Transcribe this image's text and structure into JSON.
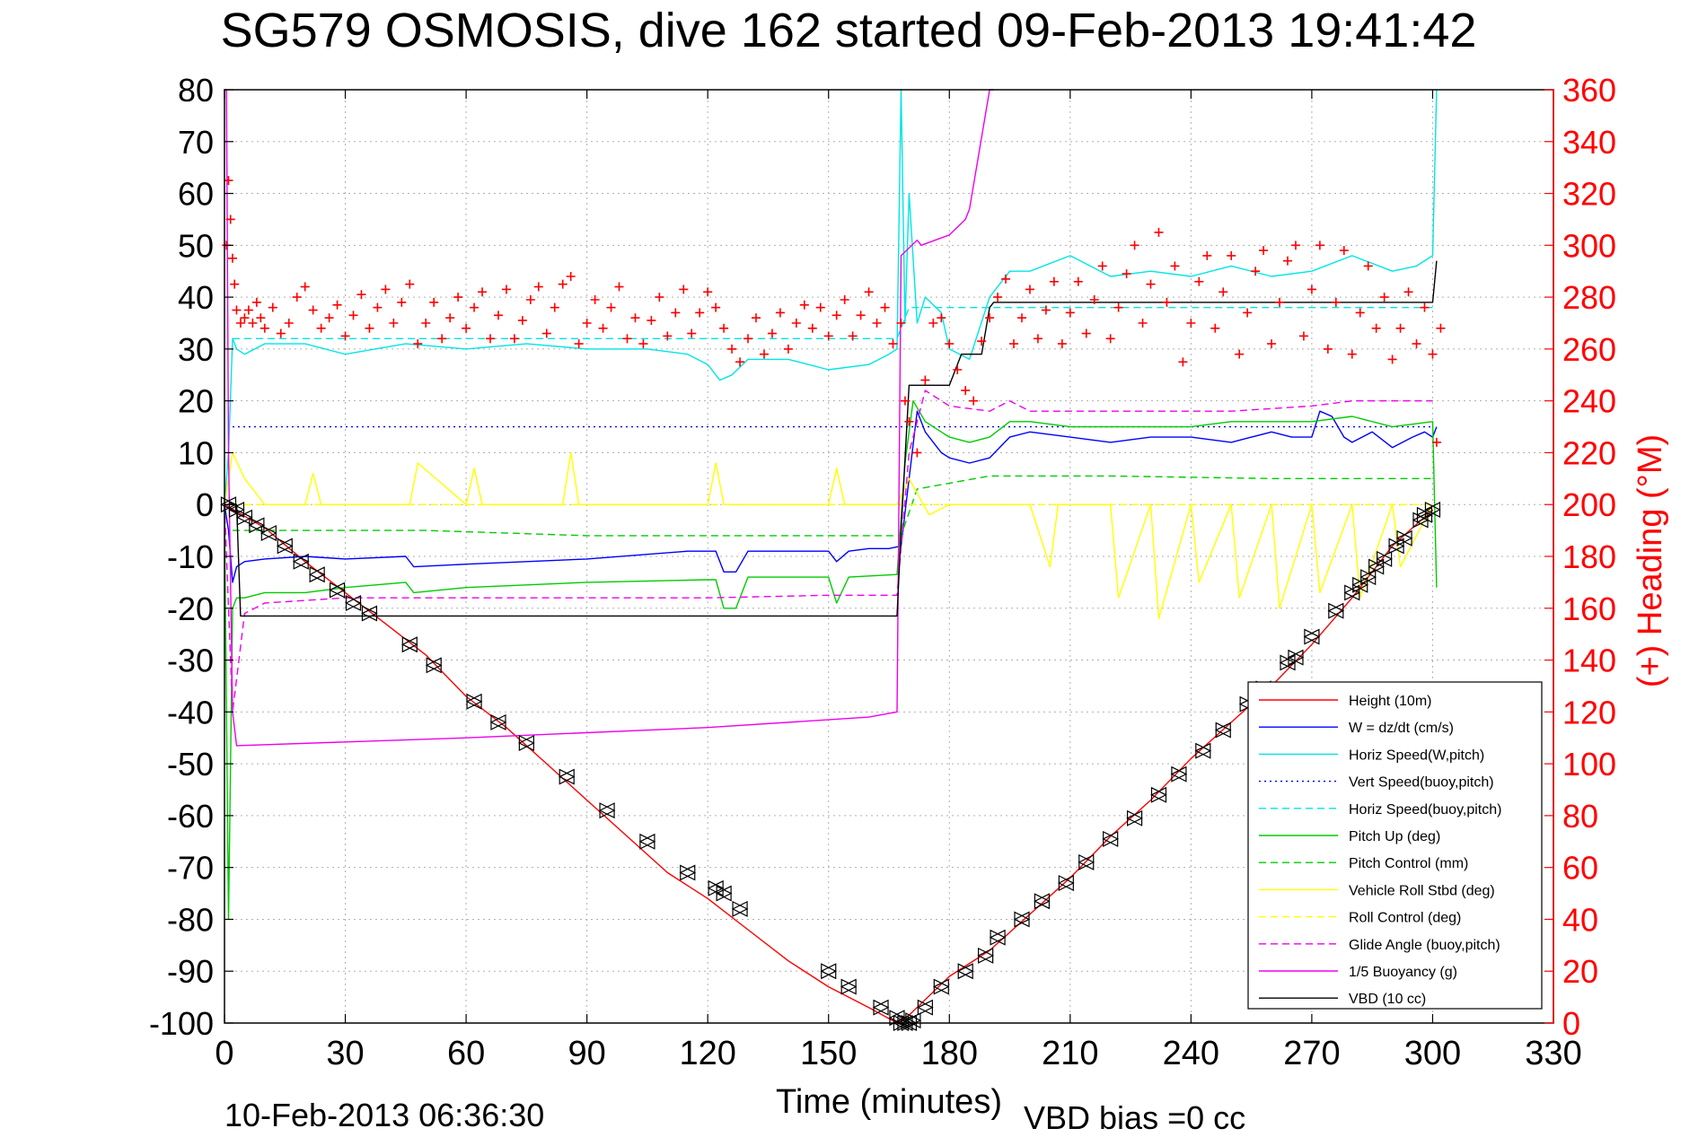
{
  "chart_data": {
    "type": "line",
    "title": "SG579 OSMOSIS, dive 162 started 09-Feb-2013 19:41:42",
    "xlabel": "Time (minutes)",
    "ylabel": "",
    "y2label": "(+) Heading (°M)",
    "xlim": [
      0,
      330
    ],
    "ylim": [
      -100,
      80
    ],
    "y2lim": [
      0,
      360
    ],
    "xticks": [
      0,
      30,
      60,
      90,
      120,
      150,
      180,
      210,
      240,
      270,
      300,
      330
    ],
    "yticks": [
      -100,
      -90,
      -80,
      -70,
      -60,
      -50,
      -40,
      -30,
      -20,
      -10,
      0,
      10,
      20,
      30,
      40,
      50,
      60,
      70,
      80
    ],
    "y2ticks": [
      0,
      20,
      40,
      60,
      80,
      100,
      120,
      140,
      160,
      180,
      200,
      220,
      240,
      260,
      280,
      300,
      320,
      340,
      360
    ],
    "grid": true,
    "legend_position": "lower-right",
    "footer_left": "10-Feb-2013 06:36:30",
    "footer_right": "VBD bias =0 cc",
    "series": [
      {
        "name": "Height (10m)",
        "color": "#ff0000",
        "dash": "solid",
        "x": [
          0,
          10,
          20,
          30,
          40,
          50,
          60,
          70,
          80,
          90,
          100,
          110,
          120,
          130,
          140,
          150,
          160,
          167,
          170,
          180,
          190,
          200,
          210,
          220,
          230,
          240,
          250,
          260,
          270,
          280,
          290,
          300
        ],
        "y": [
          0,
          -4.5,
          -11,
          -17,
          -23,
          -29,
          -37,
          -43,
          -50,
          -57,
          -64,
          -71,
          -76,
          -82,
          -88,
          -93,
          -97,
          -100,
          -98.5,
          -91,
          -86,
          -79,
          -72,
          -64,
          -57,
          -49,
          -42,
          -35,
          -27,
          -18,
          -8,
          -1
        ]
      },
      {
        "name": "W = dz/dt (cm/s)",
        "color": "#0000ff",
        "dash": "solid",
        "x": [
          0,
          1,
          2,
          3,
          5,
          10,
          20,
          30,
          45,
          47,
          60,
          90,
          115,
          122,
          124,
          127,
          130,
          150,
          152,
          155,
          160,
          165,
          168,
          170,
          172,
          174,
          178,
          180,
          185,
          190,
          195,
          200,
          210,
          220,
          230,
          240,
          250,
          255,
          260,
          265,
          270,
          272,
          275,
          278,
          280,
          285,
          290,
          295,
          298,
          300,
          301
        ],
        "y": [
          0,
          -5,
          -15,
          -12,
          -11,
          -10.5,
          -10,
          -10.5,
          -10,
          -12,
          -11.5,
          -10.5,
          -9,
          -9,
          -13,
          -13,
          -9,
          -9,
          -11,
          -9,
          -8.5,
          -8.5,
          -8,
          5,
          18,
          14,
          10,
          9,
          8,
          9,
          13,
          14,
          13,
          12,
          13,
          13,
          12,
          13,
          14,
          13,
          13,
          18,
          17,
          13,
          12,
          14,
          11,
          13,
          14,
          13,
          15
        ]
      },
      {
        "name": "Horiz Speed(W,pitch)",
        "color": "#00e5e5",
        "dash": "solid",
        "x": [
          0,
          1,
          2,
          3,
          5,
          10,
          20,
          30,
          45,
          60,
          75,
          90,
          105,
          115,
          120,
          123,
          126,
          130,
          140,
          150,
          160,
          165,
          167,
          168,
          169,
          170,
          172,
          174,
          178,
          180,
          185,
          190,
          195,
          200,
          210,
          220,
          230,
          240,
          250,
          260,
          270,
          280,
          290,
          296,
          300,
          301
        ],
        "y": [
          0,
          10,
          32,
          30,
          29,
          31,
          31,
          29,
          31,
          30,
          31,
          30,
          30,
          29,
          27,
          24,
          25,
          28,
          28,
          26,
          27,
          29,
          30,
          80,
          35,
          60,
          35,
          40,
          37,
          30,
          28,
          40,
          45,
          45,
          48,
          44,
          45,
          44,
          46,
          44,
          45,
          48,
          45,
          46,
          48,
          80
        ]
      },
      {
        "name": "Vert Speed(buoy,pitch)",
        "color": "#0000ff",
        "dash": "dotted",
        "x": [
          2,
          167,
          168,
          300
        ],
        "y": [
          15,
          15,
          15,
          15
        ]
      },
      {
        "name": "Horiz Speed(buoy,pitch)",
        "color": "#00e5e5",
        "dash": "dashed",
        "x": [
          2,
          167,
          170,
          300
        ],
        "y": [
          32,
          32,
          38,
          38
        ]
      },
      {
        "name": "Pitch Up (deg)",
        "color": "#00cc00",
        "dash": "solid",
        "x": [
          0,
          1,
          2,
          3,
          5,
          10,
          20,
          30,
          45,
          47,
          60,
          90,
          120,
          122,
          124,
          127,
          130,
          150,
          152,
          155,
          167,
          169,
          171,
          174,
          178,
          180,
          185,
          190,
          195,
          200,
          210,
          220,
          230,
          240,
          250,
          260,
          270,
          280,
          290,
          300,
          301
        ],
        "y": [
          0,
          -80,
          -20,
          -18,
          -18,
          -17,
          -17,
          -16,
          -15,
          -17,
          -16,
          -15,
          -14.5,
          -14.5,
          -20,
          -20,
          -14,
          -14,
          -19,
          -14,
          -13.5,
          8,
          20,
          16,
          14,
          13,
          12,
          13,
          16,
          16,
          15,
          15,
          15,
          15,
          16,
          16,
          16,
          17,
          15,
          16,
          -16
        ]
      },
      {
        "name": "Pitch Control (mm)",
        "color": "#00cc00",
        "dash": "dashed",
        "x": [
          2,
          20,
          50,
          90,
          130,
          168,
          172,
          190,
          220,
          260,
          300
        ],
        "y": [
          -5,
          -5,
          -5,
          -6,
          -6,
          -6,
          3,
          5.5,
          5.5,
          5,
          5
        ]
      },
      {
        "name": "Vehicle Roll Stbd (deg)",
        "color": "#ffff00",
        "dash": "solid",
        "x": [
          0,
          2,
          5,
          10,
          20,
          22,
          24,
          30,
          46,
          48,
          60,
          62,
          64,
          84,
          86,
          88,
          100,
          120,
          122,
          124,
          150,
          152,
          154,
          167,
          170,
          175,
          180,
          185,
          190,
          200,
          205,
          207,
          210,
          220,
          222,
          230,
          232,
          240,
          242,
          250,
          252,
          260,
          262,
          270,
          272,
          280,
          282,
          290,
          292,
          300
        ],
        "y": [
          0,
          10,
          5,
          0,
          0,
          6,
          0,
          0,
          0,
          8,
          0,
          7,
          0,
          0,
          10,
          0,
          0,
          0,
          8,
          0,
          0,
          7,
          0,
          0,
          5,
          -2,
          0,
          0,
          0,
          0,
          -12,
          0,
          0,
          0,
          -18,
          0,
          -22,
          0,
          -15,
          0,
          -18,
          0,
          -20,
          0,
          -17,
          0,
          -18,
          0,
          -12,
          0
        ]
      },
      {
        "name": "Roll Control (deg)",
        "color": "#ffff00",
        "dash": "dashed",
        "x": [
          2,
          167,
          170,
          300
        ],
        "y": [
          0,
          0,
          0,
          0
        ]
      },
      {
        "name": "Glide Angle (buoy,pitch)",
        "color": "#ee00ee",
        "dash": "dashed",
        "x": [
          0,
          2,
          5,
          10,
          20,
          30,
          60,
          90,
          120,
          150,
          167,
          170,
          174,
          180,
          190,
          195,
          200,
          220,
          250,
          270,
          280,
          300
        ],
        "y": [
          0,
          -40,
          -21,
          -19,
          -18.5,
          -18,
          -18,
          -18,
          -18,
          -17.5,
          -17.5,
          10,
          22,
          19,
          18,
          20,
          18,
          18,
          18,
          19,
          20,
          20
        ]
      },
      {
        "name": "1/5 Buoyancy (g)",
        "color": "#ee00ee",
        "dash": "solid",
        "x": [
          0,
          0.5,
          1,
          2,
          3,
          60,
          120,
          160,
          167,
          168,
          172,
          173,
          180,
          184,
          185,
          190,
          191
        ],
        "y": [
          80,
          80,
          10,
          -40,
          -46.5,
          -45,
          -43,
          -41,
          -40,
          48,
          51,
          50,
          52,
          55,
          57,
          80,
          80
        ]
      },
      {
        "name": "VBD (10 cc)",
        "color": "#000000",
        "dash": "solid",
        "x": [
          0,
          3,
          4,
          60,
          120,
          167,
          168,
          170,
          176,
          180,
          183,
          185,
          188,
          190,
          191,
          300,
          301
        ],
        "y": [
          0,
          0,
          -21.5,
          -21.5,
          -21.5,
          -21.5,
          -5,
          23,
          23,
          23,
          29,
          29,
          29,
          38,
          39,
          39,
          47
        ]
      }
    ],
    "heading_series": {
      "name": "(+) Heading",
      "color": "#ff0000",
      "marker": "+",
      "x": [
        0.5,
        1,
        1.5,
        2,
        2.5,
        3,
        4,
        5,
        6,
        7,
        8,
        9,
        10,
        12,
        14,
        16,
        18,
        20,
        22,
        24,
        26,
        28,
        30,
        32,
        34,
        36,
        38,
        40,
        42,
        44,
        46,
        48,
        50,
        52,
        54,
        56,
        58,
        60,
        62,
        64,
        66,
        68,
        70,
        72,
        74,
        76,
        78,
        80,
        82,
        84,
        86,
        88,
        90,
        92,
        94,
        96,
        98,
        100,
        102,
        104,
        106,
        108,
        110,
        112,
        114,
        116,
        118,
        120,
        122,
        124,
        126,
        128,
        130,
        132,
        134,
        136,
        138,
        140,
        142,
        144,
        146,
        148,
        150,
        152,
        154,
        156,
        158,
        160,
        162,
        164,
        166,
        168,
        169,
        170,
        172,
        174,
        176,
        178,
        180,
        182,
        184,
        186,
        188,
        190,
        192,
        194,
        196,
        198,
        200,
        202,
        204,
        206,
        208,
        210,
        212,
        214,
        216,
        218,
        220,
        222,
        224,
        226,
        228,
        230,
        232,
        234,
        236,
        238,
        240,
        242,
        244,
        246,
        248,
        250,
        252,
        254,
        256,
        258,
        260,
        262,
        264,
        266,
        268,
        270,
        272,
        274,
        276,
        278,
        280,
        282,
        284,
        286,
        288,
        290,
        292,
        294,
        296,
        298,
        300,
        301,
        302
      ],
      "y": [
        300,
        325,
        310,
        295,
        285,
        275,
        270,
        272,
        275,
        270,
        278,
        272,
        268,
        276,
        266,
        270,
        280,
        284,
        275,
        268,
        272,
        277,
        265,
        273,
        281,
        268,
        276,
        283,
        270,
        278,
        285,
        262,
        270,
        278,
        264,
        272,
        280,
        268,
        276,
        282,
        264,
        273,
        283,
        264,
        271,
        279,
        284,
        266,
        276,
        285,
        288,
        262,
        270,
        279,
        268,
        276,
        284,
        264,
        272,
        262,
        271,
        280,
        265,
        274,
        283,
        266,
        274,
        282,
        276,
        268,
        260,
        255,
        264,
        272,
        258,
        266,
        274,
        260,
        270,
        277,
        268,
        276,
        265,
        273,
        279,
        265,
        273,
        282,
        270,
        276,
        262,
        270,
        240,
        232,
        220,
        248,
        270,
        272,
        262,
        252,
        244,
        240,
        263,
        272,
        280,
        287,
        262,
        272,
        283,
        264,
        275,
        286,
        262,
        274,
        286,
        266,
        279,
        292,
        264,
        276,
        289,
        300,
        270,
        285,
        305,
        278,
        292,
        255,
        270,
        286,
        296,
        268,
        282,
        296,
        258,
        274,
        290,
        298,
        262,
        278,
        294,
        300,
        265,
        283,
        300,
        260,
        278,
        298,
        258,
        274,
        292,
        268,
        280,
        256,
        268,
        282,
        262,
        276,
        258,
        224,
        268
      ]
    },
    "track_markers": {
      "marker": "triangle",
      "color": "#000000",
      "x": [
        1,
        3,
        5,
        8,
        11,
        15,
        19,
        23,
        28,
        32,
        36,
        46,
        52,
        62,
        68,
        75,
        85,
        95,
        105,
        115,
        122,
        124,
        128,
        150,
        155,
        163,
        167,
        168,
        169,
        170,
        171,
        174,
        178,
        184,
        189,
        192,
        198,
        203,
        209,
        214,
        220,
        226,
        232,
        237,
        243,
        248,
        254,
        258,
        264,
        266,
        270,
        276,
        280,
        282,
        284,
        286,
        288,
        291,
        293,
        297,
        298,
        300
      ],
      "y": [
        0,
        -1,
        -2.5,
        -4,
        -5.5,
        -8,
        -11,
        -13.5,
        -16.5,
        -19,
        -21,
        -27,
        -31,
        -38,
        -42,
        -46,
        -52.5,
        -59,
        -65,
        -71,
        -74,
        -75,
        -78,
        -90,
        -93,
        -97,
        -99,
        -100,
        -100,
        -100,
        -99.5,
        -97,
        -93,
        -90,
        -87,
        -83.5,
        -80,
        -76.5,
        -73,
        -69,
        -64.5,
        -60.5,
        -56,
        -52,
        -47.5,
        -43.5,
        -38.5,
        -35.5,
        -30.5,
        -29.5,
        -25.5,
        -20.5,
        -17,
        -15.5,
        -14,
        -12,
        -10.5,
        -8,
        -6.5,
        -3,
        -2,
        -1
      ]
    }
  }
}
